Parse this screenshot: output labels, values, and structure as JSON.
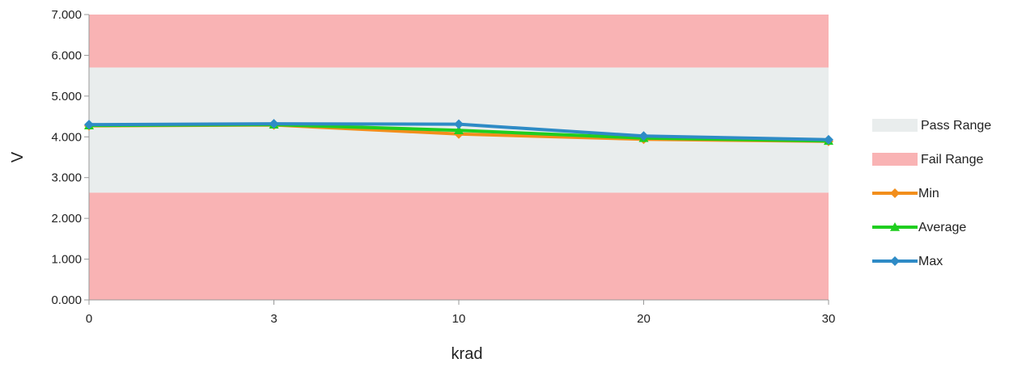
{
  "chart_data": {
    "type": "line",
    "categories": [
      "0",
      "3",
      "10",
      "20",
      "30"
    ],
    "xlabel": "krad",
    "ylabel": "V",
    "ylim": [
      0,
      7
    ],
    "yticks": [
      "0.000",
      "1.000",
      "2.000",
      "3.000",
      "4.000",
      "5.000",
      "6.000",
      "7.000"
    ],
    "bands": [
      {
        "name": "Fail Range",
        "from": 5.7,
        "to": 7.0,
        "color": "#f9b3b4"
      },
      {
        "name": "Pass Range",
        "from": 2.63,
        "to": 5.7,
        "color": "#e9eded"
      },
      {
        "name": "Fail Range",
        "from": 0.0,
        "to": 2.63,
        "color": "#f9b3b4"
      }
    ],
    "series": [
      {
        "name": "Min",
        "values": [
          4.27,
          4.29,
          4.07,
          3.94,
          3.89
        ],
        "color": "#f28e1b",
        "marker": "diamond"
      },
      {
        "name": "Average",
        "values": [
          4.28,
          4.3,
          4.16,
          3.97,
          3.9
        ],
        "color": "#1fce1f",
        "marker": "triangle"
      },
      {
        "name": "Max",
        "values": [
          4.3,
          4.32,
          4.31,
          4.02,
          3.93
        ],
        "color": "#2e8bc6",
        "marker": "diamond"
      }
    ],
    "legend": {
      "position": "right",
      "entries": [
        {
          "label": "Pass Range",
          "kind": "band",
          "color": "#e9eded"
        },
        {
          "label": "Fail Range",
          "kind": "band",
          "color": "#f9b3b4"
        },
        {
          "label": "Min",
          "kind": "line",
          "color": "#f28e1b",
          "marker": "diamond"
        },
        {
          "label": "Average",
          "kind": "line",
          "color": "#1fce1f",
          "marker": "triangle"
        },
        {
          "label": "Max",
          "kind": "line",
          "color": "#2e8bc6",
          "marker": "diamond"
        }
      ]
    },
    "grid": false
  }
}
